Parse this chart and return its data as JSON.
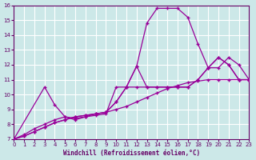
{
  "background_color": "#cce8e8",
  "grid_color": "#ffffff",
  "line_color": "#990099",
  "xlabel": "Windchill (Refroidissement éolien,°C)",
  "xlabel_color": "#660066",
  "tick_color": "#660066",
  "xlim": [
    0,
    23
  ],
  "ylim": [
    7,
    16
  ],
  "xticks": [
    0,
    1,
    2,
    3,
    4,
    5,
    6,
    7,
    8,
    9,
    10,
    11,
    12,
    13,
    14,
    15,
    16,
    17,
    18,
    19,
    20,
    21,
    22,
    23
  ],
  "yticks": [
    7,
    8,
    9,
    10,
    11,
    12,
    13,
    14,
    15,
    16
  ],
  "curve1_x": [
    0,
    1,
    2,
    3,
    4,
    5,
    6,
    7,
    8,
    9,
    10,
    11,
    12,
    13,
    14,
    15,
    16,
    17,
    18,
    19,
    20,
    21,
    22,
    23
  ],
  "curve1_y": [
    7.0,
    7.2,
    7.5,
    7.8,
    8.1,
    8.3,
    8.5,
    8.6,
    8.7,
    8.8,
    9.0,
    9.2,
    9.5,
    9.8,
    10.1,
    10.4,
    10.6,
    10.8,
    10.9,
    11.0,
    11.0,
    11.0,
    11.0,
    11.0
  ],
  "curve2_x": [
    0,
    3,
    4,
    5,
    6,
    7,
    8,
    9,
    10,
    11,
    12,
    13,
    14,
    15,
    16,
    17,
    18,
    19,
    20,
    21,
    22,
    23
  ],
  "curve2_y": [
    7.0,
    10.5,
    9.3,
    8.5,
    8.3,
    8.5,
    8.6,
    8.7,
    10.5,
    10.5,
    10.5,
    10.5,
    10.5,
    10.5,
    10.5,
    10.5,
    11.0,
    11.8,
    11.8,
    12.5,
    12.0,
    11.0
  ],
  "curve3_x": [
    0,
    1,
    2,
    3,
    4,
    5,
    6,
    7,
    8,
    9,
    10,
    11,
    12,
    13,
    14,
    15,
    16,
    17,
    18,
    19,
    20,
    21,
    22,
    23
  ],
  "curve3_y": [
    7.0,
    7.3,
    7.7,
    8.0,
    8.3,
    8.5,
    8.4,
    8.5,
    8.7,
    8.8,
    9.5,
    10.5,
    11.9,
    10.5,
    10.5,
    10.5,
    10.5,
    10.5,
    11.0,
    11.8,
    12.5,
    12.0,
    11.0,
    11.0
  ],
  "curve4_x": [
    0,
    1,
    2,
    3,
    4,
    5,
    6,
    7,
    8,
    9,
    10,
    11,
    12,
    13,
    14,
    15,
    16,
    17,
    18,
    19,
    20,
    21,
    22,
    23
  ],
  "curve4_y": [
    7.0,
    7.2,
    7.5,
    7.8,
    8.1,
    8.3,
    8.5,
    8.6,
    8.7,
    8.8,
    9.5,
    10.5,
    11.9,
    14.8,
    15.8,
    15.8,
    15.8,
    15.2,
    13.4,
    11.8,
    12.5,
    12.0,
    11.0,
    11.0
  ]
}
